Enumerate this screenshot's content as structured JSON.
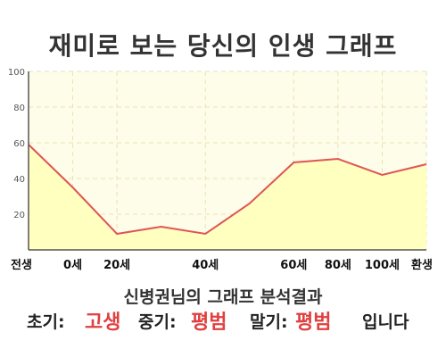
{
  "title": "재미로 보는 당신의 인생 그래프",
  "chart_data": {
    "type": "area",
    "x_categories": [
      "전생",
      "0세",
      "20세",
      "40세",
      "60세",
      "80세",
      "100세",
      "환생"
    ],
    "points": [
      {
        "x": "전생",
        "y": 59
      },
      {
        "x": "0세",
        "y": 35
      },
      {
        "x": "20세",
        "y": 9
      },
      {
        "x": "",
        "y": 13
      },
      {
        "x": "40세",
        "y": 9
      },
      {
        "x": "",
        "y": 26
      },
      {
        "x": "60세",
        "y": 49
      },
      {
        "x": "80세",
        "y": 51
      },
      {
        "x": "100세",
        "y": 42
      },
      {
        "x": "환생",
        "y": 48
      }
    ],
    "y_ticks": [
      "20",
      "40",
      "60",
      "80",
      "100"
    ],
    "ylim": [
      0,
      100
    ],
    "grid": true,
    "colors": {
      "line": "#e05555",
      "fill": "#ffffc0",
      "background": "#fefde9"
    }
  },
  "summary": "신병권님의 그래프 분석결과",
  "result": {
    "early_label": "초기:",
    "early_value": "고생",
    "middle_label": "중기:",
    "middle_value": "평범",
    "late_label": "말기:",
    "late_value": "평범",
    "suffix": "입니다"
  }
}
